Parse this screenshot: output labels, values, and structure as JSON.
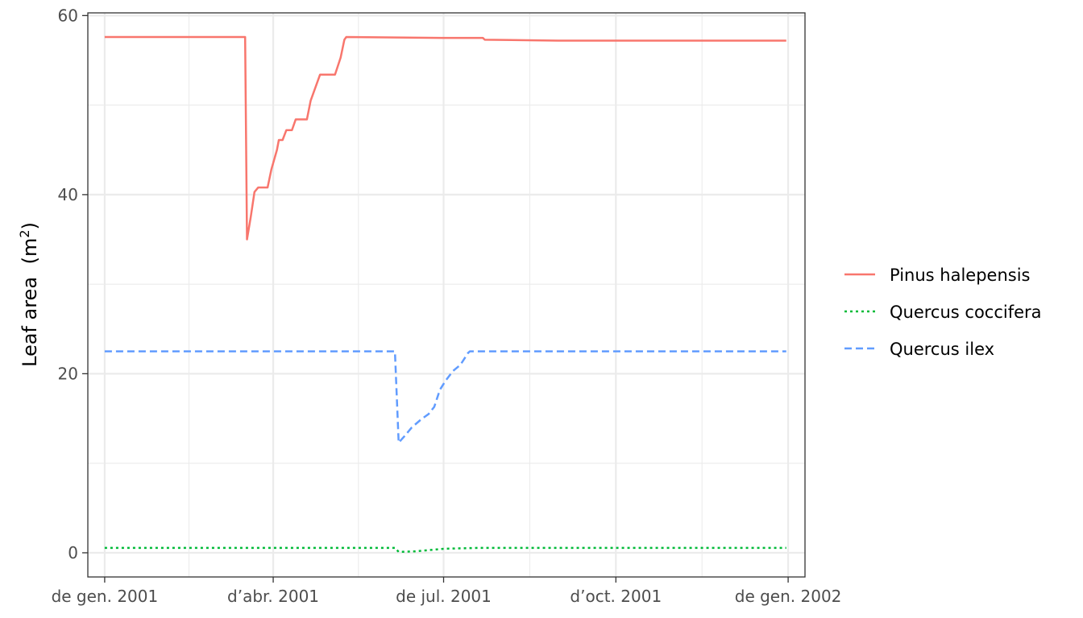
{
  "chart_data": {
    "type": "line",
    "title": "",
    "xlabel": "",
    "ylabel": "Leaf area",
    "ylabel_unit": "(m",
    "ylabel_unit_sup": "2",
    "ylabel_unit_close": ")",
    "xlim": [
      "2000-12-23",
      "2002-01-10"
    ],
    "ylim": [
      -2.7,
      60.3
    ],
    "grid": true,
    "legend_position": "right",
    "x_ticks": [
      {
        "date": "2001-01-01",
        "label": "de gen. 2001"
      },
      {
        "date": "2001-04-01",
        "label": "d’abr. 2001"
      },
      {
        "date": "2001-07-01",
        "label": "de jul. 2001"
      },
      {
        "date": "2001-10-01",
        "label": "d’oct. 2001"
      },
      {
        "date": "2002-01-01",
        "label": "de gen. 2002"
      }
    ],
    "y_ticks": [
      0,
      20,
      40,
      60
    ],
    "series": [
      {
        "name": "Pinus halepensis",
        "color": "#F8766D",
        "dash": "solid",
        "points": [
          [
            "2001-01-01",
            57.6
          ],
          [
            "2001-03-17",
            57.6
          ],
          [
            "2001-03-18",
            35.0
          ],
          [
            "2001-03-20",
            37.5
          ],
          [
            "2001-03-22",
            40.3
          ],
          [
            "2001-03-24",
            40.8
          ],
          [
            "2001-03-29",
            40.8
          ],
          [
            "2001-03-31",
            42.8
          ],
          [
            "2001-04-03",
            45.0
          ],
          [
            "2001-04-04",
            46.1
          ],
          [
            "2001-04-06",
            46.1
          ],
          [
            "2001-04-08",
            47.2
          ],
          [
            "2001-04-11",
            47.2
          ],
          [
            "2001-04-13",
            48.4
          ],
          [
            "2001-04-19",
            48.4
          ],
          [
            "2001-04-21",
            50.5
          ],
          [
            "2001-04-26",
            53.4
          ],
          [
            "2001-05-04",
            53.4
          ],
          [
            "2001-05-07",
            55.3
          ],
          [
            "2001-05-09",
            57.3
          ],
          [
            "2001-05-10",
            57.6
          ],
          [
            "2001-06-30",
            57.5
          ],
          [
            "2001-07-22",
            57.5
          ],
          [
            "2001-07-23",
            57.3
          ],
          [
            "2001-08-31",
            57.2
          ],
          [
            "2001-12-31",
            57.2
          ]
        ]
      },
      {
        "name": "Quercus coccifera",
        "color": "#00BA38",
        "dash": "dotted",
        "points": [
          [
            "2001-01-01",
            0.55
          ],
          [
            "2001-06-05",
            0.55
          ],
          [
            "2001-06-07",
            0.1
          ],
          [
            "2001-06-15",
            0.15
          ],
          [
            "2001-07-01",
            0.45
          ],
          [
            "2001-07-20",
            0.55
          ],
          [
            "2001-12-31",
            0.55
          ]
        ]
      },
      {
        "name": "Quercus ilex",
        "color": "#619CFF",
        "dash": "dashed",
        "points": [
          [
            "2001-01-01",
            22.5
          ],
          [
            "2001-06-05",
            22.5
          ],
          [
            "2001-06-07",
            12.3
          ],
          [
            "2001-06-10",
            13.0
          ],
          [
            "2001-06-14",
            14.0
          ],
          [
            "2001-06-19",
            14.9
          ],
          [
            "2001-06-23",
            15.5
          ],
          [
            "2001-06-26",
            16.3
          ],
          [
            "2001-06-29",
            18.2
          ],
          [
            "2001-07-02",
            19.2
          ],
          [
            "2001-07-06",
            20.3
          ],
          [
            "2001-07-10",
            21.0
          ],
          [
            "2001-07-14",
            22.3
          ],
          [
            "2001-07-15",
            22.5
          ],
          [
            "2001-12-31",
            22.5
          ]
        ]
      }
    ]
  }
}
